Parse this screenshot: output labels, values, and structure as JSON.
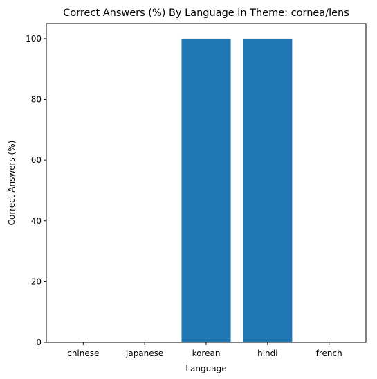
{
  "chart_data": {
    "type": "bar",
    "title": "Correct Answers (%) By Language in Theme: cornea/lens",
    "xlabel": "Language",
    "ylabel": "Correct Answers (%)",
    "categories": [
      "chinese",
      "japanese",
      "korean",
      "hindi",
      "french"
    ],
    "values": [
      0,
      0,
      100,
      100,
      0
    ],
    "ylim": [
      0,
      105
    ],
    "yticks": [
      0,
      20,
      40,
      60,
      80,
      100
    ],
    "grid": false,
    "legend": "none",
    "bar_color": "#1f77b4"
  }
}
